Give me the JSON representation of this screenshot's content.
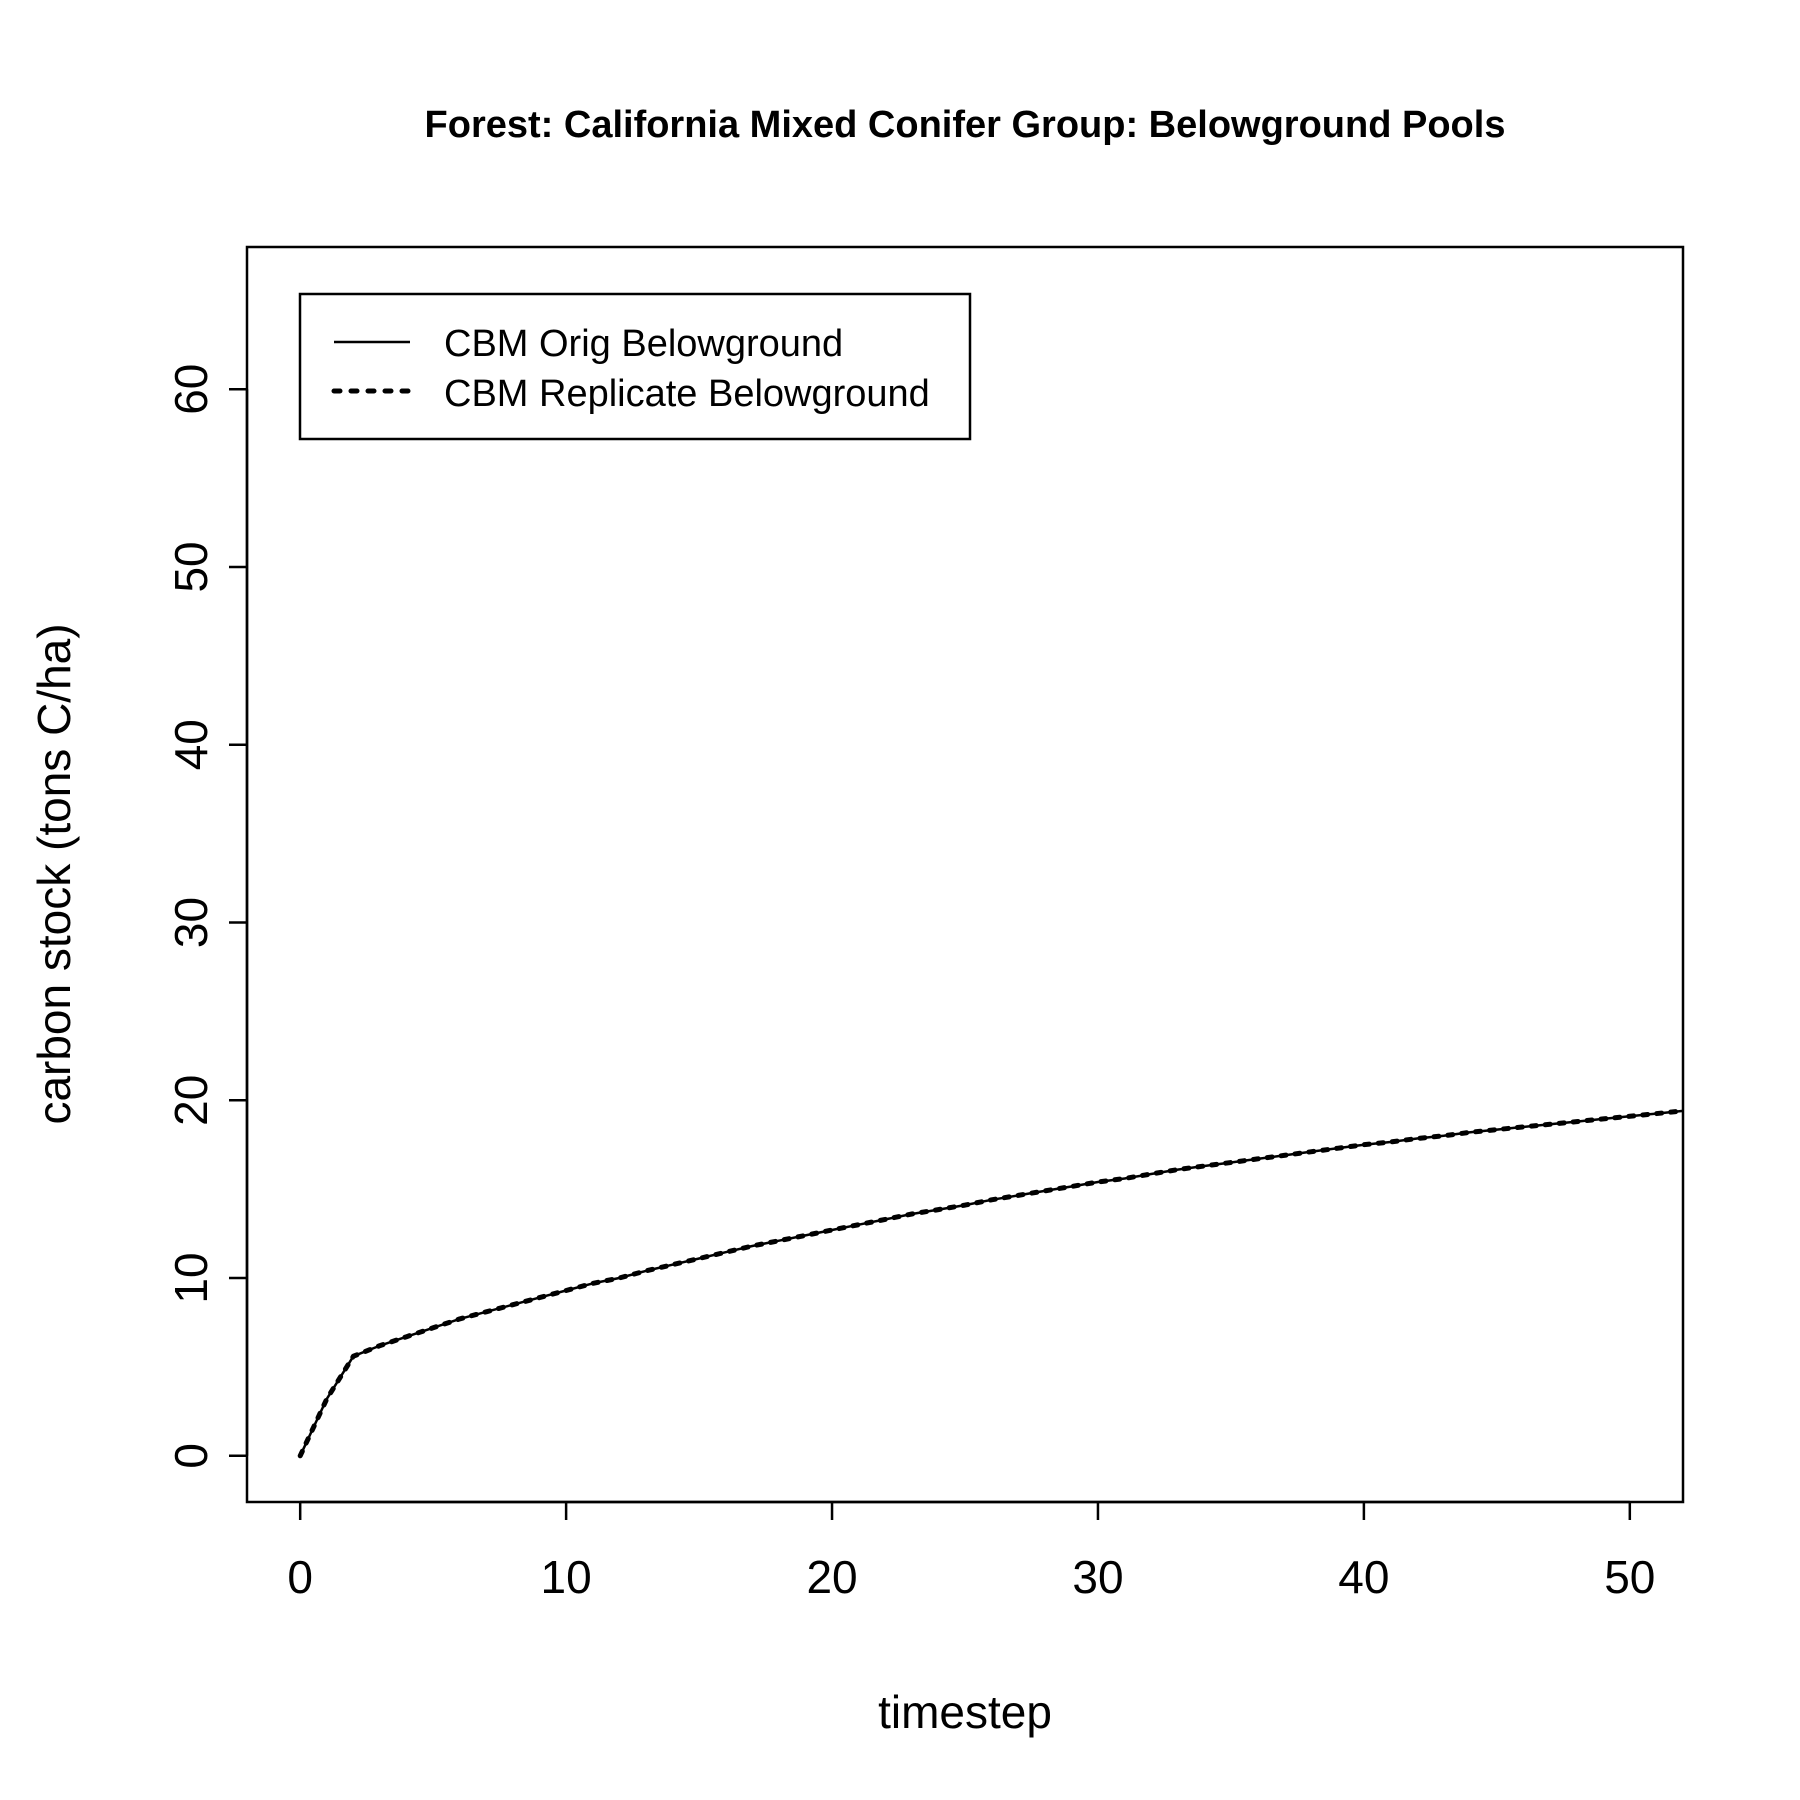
{
  "chart_data": {
    "type": "line",
    "title": "Forest: California Mixed Conifer Group: Belowground Pools",
    "xlabel": "timestep",
    "ylabel": "carbon stock (tons C/ha)",
    "xlim": [
      -2,
      52
    ],
    "ylim": [
      -2.6,
      68
    ],
    "xticks": [
      0,
      10,
      20,
      30,
      40,
      50
    ],
    "yticks": [
      0,
      10,
      20,
      30,
      40,
      50,
      60
    ],
    "grid": false,
    "legend_position": "top-left",
    "colors": {
      "line": "#000000",
      "axes": "#000000",
      "background": "#ffffff"
    },
    "x": [
      0,
      1,
      2,
      3,
      4,
      5,
      6,
      7,
      8,
      9,
      10,
      11,
      12,
      13,
      14,
      15,
      16,
      17,
      18,
      19,
      20,
      21,
      22,
      23,
      24,
      25,
      26,
      27,
      28,
      29,
      30,
      31,
      32,
      33,
      34,
      35,
      36,
      37,
      38,
      39,
      40,
      41,
      42,
      43,
      44,
      45,
      46,
      47,
      48,
      49,
      50,
      51,
      52
    ],
    "series": [
      {
        "name": "CBM Orig Belowground",
        "line_style": "solid",
        "values": [
          0,
          3.2,
          5.6,
          6.2,
          6.7,
          7.2,
          7.7,
          8.1,
          8.5,
          8.9,
          9.3,
          9.7,
          10.0,
          10.4,
          10.75,
          11.1,
          11.45,
          11.8,
          12.1,
          12.4,
          12.7,
          13.0,
          13.3,
          13.6,
          13.85,
          14.1,
          14.4,
          14.65,
          14.9,
          15.15,
          15.4,
          15.6,
          15.85,
          16.1,
          16.3,
          16.5,
          16.7,
          16.9,
          17.1,
          17.3,
          17.5,
          17.65,
          17.85,
          18.0,
          18.2,
          18.35,
          18.5,
          18.65,
          18.8,
          18.95,
          19.1,
          19.25,
          19.4
        ]
      },
      {
        "name": "CBM Replicate Belowground",
        "line_style": "dotted",
        "values": [
          0,
          3.2,
          5.6,
          6.2,
          6.7,
          7.2,
          7.7,
          8.1,
          8.5,
          8.9,
          9.3,
          9.7,
          10.0,
          10.4,
          10.75,
          11.1,
          11.45,
          11.8,
          12.1,
          12.4,
          12.7,
          13.0,
          13.3,
          13.6,
          13.85,
          14.1,
          14.4,
          14.65,
          14.9,
          15.15,
          15.4,
          15.6,
          15.85,
          16.1,
          16.3,
          16.5,
          16.7,
          16.9,
          17.1,
          17.3,
          17.5,
          17.65,
          17.85,
          18.0,
          18.2,
          18.35,
          18.5,
          18.65,
          18.8,
          18.95,
          19.1,
          19.25,
          19.4
        ]
      }
    ]
  }
}
